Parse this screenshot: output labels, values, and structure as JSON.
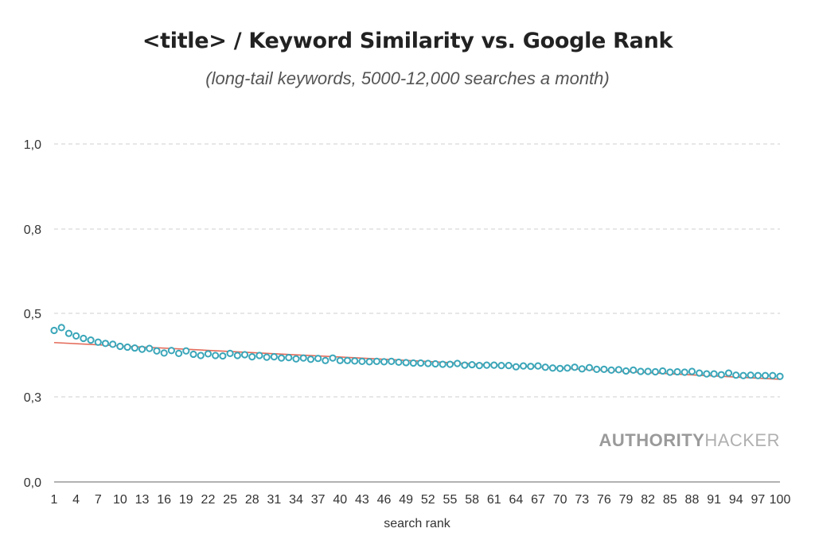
{
  "chart_data": {
    "type": "scatter",
    "title": "<title> / Keyword Similarity vs. Google Rank",
    "subtitle": "(long-tail keywords, 5000-12,000 searches a month)",
    "xlabel": "search rank",
    "ylabel": "",
    "xlim": [
      1,
      100
    ],
    "y_ticks": [
      {
        "label": "0,0",
        "value": 0.0
      },
      {
        "label": "0,3",
        "value": 0.3
      },
      {
        "label": "0,5",
        "value": 0.5
      },
      {
        "label": "0,8",
        "value": 0.8
      },
      {
        "label": "1,0",
        "value": 1.0
      }
    ],
    "x_ticks": [
      "1",
      "4",
      "7",
      "10",
      "13",
      "16",
      "19",
      "22",
      "25",
      "28",
      "31",
      "34",
      "37",
      "40",
      "43",
      "46",
      "49",
      "52",
      "55",
      "58",
      "61",
      "64",
      "67",
      "70",
      "73",
      "76",
      "79",
      "82",
      "85",
      "88",
      "91",
      "94",
      "97",
      "100"
    ],
    "grid": true,
    "series": [
      {
        "name": "keyword similarity",
        "color": "#3aa6b9",
        "x": [
          1,
          2,
          3,
          4,
          5,
          6,
          7,
          8,
          9,
          10,
          11,
          12,
          13,
          14,
          15,
          16,
          17,
          18,
          19,
          20,
          21,
          22,
          23,
          24,
          25,
          26,
          27,
          28,
          29,
          30,
          31,
          32,
          33,
          34,
          35,
          36,
          37,
          38,
          39,
          40,
          41,
          42,
          43,
          44,
          45,
          46,
          47,
          48,
          49,
          50,
          51,
          52,
          53,
          54,
          55,
          56,
          57,
          58,
          59,
          60,
          61,
          62,
          63,
          64,
          65,
          66,
          67,
          68,
          69,
          70,
          71,
          72,
          73,
          74,
          75,
          76,
          77,
          78,
          79,
          80,
          81,
          82,
          83,
          84,
          85,
          86,
          87,
          88,
          89,
          90,
          91,
          92,
          93,
          94,
          95,
          96,
          97,
          98,
          99,
          100
        ],
        "values": [
          0.459,
          0.466,
          0.452,
          0.446,
          0.44,
          0.436,
          0.431,
          0.428,
          0.426,
          0.421,
          0.419,
          0.417,
          0.414,
          0.416,
          0.41,
          0.405,
          0.411,
          0.404,
          0.41,
          0.402,
          0.399,
          0.403,
          0.399,
          0.398,
          0.404,
          0.399,
          0.401,
          0.396,
          0.399,
          0.395,
          0.396,
          0.393,
          0.394,
          0.391,
          0.393,
          0.39,
          0.392,
          0.387,
          0.393,
          0.387,
          0.387,
          0.386,
          0.385,
          0.384,
          0.385,
          0.384,
          0.385,
          0.383,
          0.382,
          0.381,
          0.381,
          0.38,
          0.379,
          0.378,
          0.378,
          0.38,
          0.376,
          0.377,
          0.375,
          0.376,
          0.376,
          0.375,
          0.375,
          0.372,
          0.374,
          0.373,
          0.374,
          0.371,
          0.369,
          0.368,
          0.369,
          0.371,
          0.367,
          0.37,
          0.366,
          0.366,
          0.364,
          0.365,
          0.362,
          0.364,
          0.361,
          0.361,
          0.36,
          0.362,
          0.359,
          0.36,
          0.359,
          0.361,
          0.357,
          0.355,
          0.355,
          0.353,
          0.357,
          0.352,
          0.351,
          0.352,
          0.351,
          0.351,
          0.351,
          0.349
        ]
      }
    ],
    "trendline": {
      "name": "trend",
      "color": "#e36b5a",
      "start": [
        1,
        0.43
      ],
      "end": [
        100,
        0.342
      ]
    },
    "watermark": {
      "bold": "AUTHORITY",
      "light": "HACKER"
    }
  }
}
